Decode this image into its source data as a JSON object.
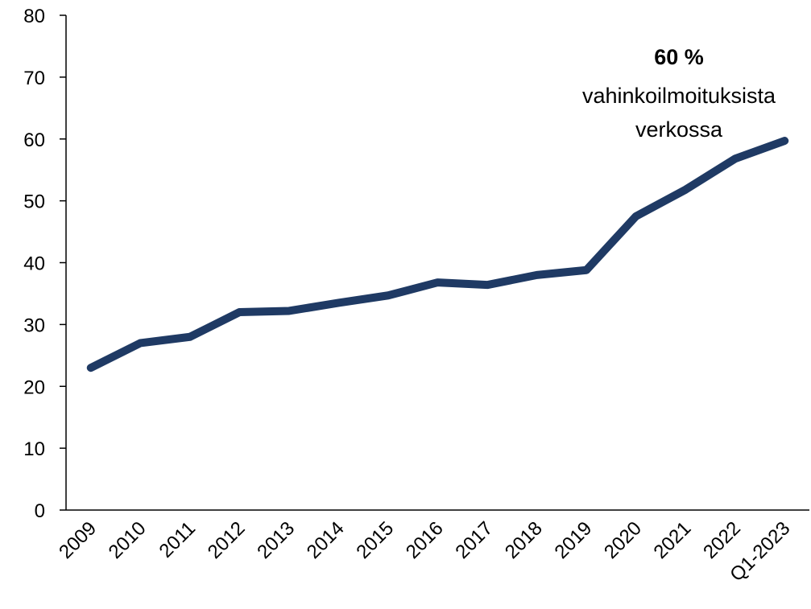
{
  "chart_data": {
    "type": "line",
    "categories": [
      "2009",
      "2010",
      "2011",
      "2012",
      "2013",
      "2014",
      "2015",
      "2016",
      "2017",
      "2018",
      "2019",
      "2020",
      "2021",
      "2022",
      "Q1-2023"
    ],
    "series": [
      {
        "name": null,
        "color": "#1f3a64",
        "values": [
          23,
          27,
          28,
          32,
          32.2,
          33.5,
          34.7,
          36.8,
          36.4,
          38,
          38.8,
          47.5,
          51.8,
          56.8,
          59.7
        ]
      }
    ],
    "ylim": [
      0,
      80
    ],
    "yticks": [
      0,
      10,
      20,
      30,
      40,
      50,
      60,
      70,
      80
    ],
    "annotation": {
      "bold": "60 %",
      "lines": [
        "vahinkoilmoituksista",
        "verkossa"
      ]
    }
  }
}
